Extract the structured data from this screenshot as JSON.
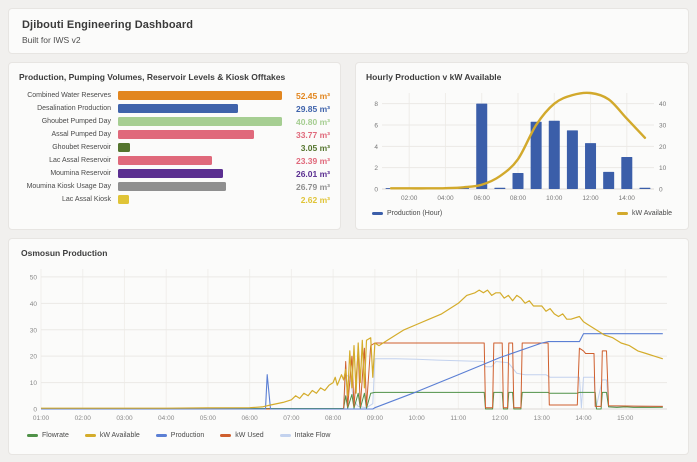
{
  "header": {
    "title": "Djibouti Engineering Dashboard",
    "subtitle": "Built for IWS v2"
  },
  "chart_data": [
    {
      "id": "volumes",
      "type": "bar",
      "orientation": "horizontal",
      "title": "Production, Pumping Volumes, Reservoir Levels & Kiosk Offtakes",
      "unit": "m³",
      "categories": [
        "Combined Water Reserves",
        "Desalination Production",
        "Ghoubet Pumped Day",
        "Assal Pumped Day",
        "Ghoubet Reservoir",
        "Lac Assal Reservoir",
        "Moumina Reservoir",
        "Moumina Kiosk Usage Day",
        "Lac Assal Kiosk"
      ],
      "values": [
        52.45,
        29.85,
        40.8,
        33.77,
        3.05,
        23.39,
        26.01,
        26.79,
        2.62
      ],
      "value_labels": [
        "52.45 m³",
        "29.85 m³",
        "40.80 m³",
        "33.77 m³",
        "3.05 m³",
        "23.39 m³",
        "26.01 m³",
        "26.79 m³",
        "2.62 m³"
      ],
      "bar_colors": [
        "#e2861f",
        "#3f63ab",
        "#a6ce92",
        "#e0697b",
        "#55752e",
        "#e0697b",
        "#5b2f91",
        "#8f8f8f",
        "#e0c437"
      ],
      "xmax_display": 40.8
    },
    {
      "id": "hourly",
      "type": "bar+line",
      "title": "Hourly Production v kW Available",
      "hours": [
        1,
        2,
        3,
        4,
        5,
        6,
        7,
        8,
        9,
        10,
        11,
        12,
        13,
        14,
        15
      ],
      "x_tick_hours": [
        2,
        4,
        6,
        8,
        10,
        12,
        14
      ],
      "x_tick_labels": [
        "02:00",
        "04:00",
        "06:00",
        "08:00",
        "10:00",
        "12:00",
        "14:00"
      ],
      "left_axis": {
        "ticks": [
          0,
          2,
          4,
          6,
          8
        ],
        "max": 9
      },
      "right_axis": {
        "ticks": [
          0,
          10,
          20,
          30,
          40
        ],
        "max": 45
      },
      "series": [
        {
          "name": "Production (Hour)",
          "type": "bar",
          "axis": "left",
          "color": "#3b5ea9",
          "values": [
            0.08,
            0.08,
            0.08,
            0.08,
            0.08,
            8,
            0.12,
            1.5,
            6.3,
            6.4,
            5.5,
            4.3,
            1.6,
            3.0,
            0.12
          ]
        },
        {
          "name": "kW Available",
          "type": "line",
          "axis": "right",
          "color": "#d2a92c",
          "values": [
            0.3,
            0.3,
            0.3,
            0.4,
            0.8,
            2,
            6,
            14,
            30,
            40,
            44,
            45,
            42,
            33,
            24
          ]
        }
      ]
    },
    {
      "id": "osmosun",
      "type": "line",
      "title": "Osmosun Production",
      "ylim": [
        0,
        50
      ],
      "y_ticks": [
        0,
        10,
        20,
        30,
        40,
        50
      ],
      "x_tick_hours": [
        1,
        2,
        3,
        4,
        5,
        6,
        7,
        8,
        9,
        10,
        11,
        12,
        13,
        14,
        15
      ],
      "x_tick_labels": [
        "01:00",
        "02:00",
        "03:00",
        "04:00",
        "05:00",
        "06:00",
        "07:00",
        "08:00",
        "09:00",
        "10:00",
        "11:00",
        "12:00",
        "13:00",
        "14:00",
        "15:00"
      ],
      "series": [
        {
          "name": "Intake Flow",
          "color": "#c3d2ee",
          "width": 1,
          "points": [
            [
              1,
              0
            ],
            [
              8.25,
              0
            ],
            [
              8.3,
              13
            ],
            [
              8.4,
              12
            ],
            [
              8.5,
              3
            ],
            [
              8.6,
              1
            ],
            [
              8.8,
              0.5
            ],
            [
              8.95,
              2
            ],
            [
              9.0,
              19
            ],
            [
              9.5,
              19
            ],
            [
              10,
              18.8
            ],
            [
              10.5,
              18.5
            ],
            [
              11,
              18.3
            ],
            [
              11.6,
              18
            ],
            [
              11.65,
              16
            ],
            [
              11.8,
              16
            ],
            [
              11.9,
              18
            ],
            [
              12.2,
              17.5
            ],
            [
              12.4,
              13.5
            ],
            [
              12.6,
              13
            ],
            [
              13.1,
              13
            ],
            [
              13.2,
              12
            ],
            [
              13.9,
              12
            ],
            [
              13.95,
              0.5
            ],
            [
              14.0,
              12
            ],
            [
              14.25,
              12
            ],
            [
              14.3,
              0.5
            ],
            [
              14.45,
              11
            ],
            [
              14.55,
              11
            ],
            [
              14.6,
              1
            ],
            [
              15.9,
              1
            ]
          ]
        },
        {
          "name": "Flowrate",
          "color": "#4f9147",
          "width": 1,
          "points": [
            [
              1,
              0.2
            ],
            [
              8.25,
              0.2
            ],
            [
              8.3,
              5
            ],
            [
              8.35,
              0.3
            ],
            [
              8.45,
              5.5
            ],
            [
              8.5,
              0.3
            ],
            [
              8.6,
              6
            ],
            [
              8.65,
              0.3
            ],
            [
              8.75,
              6
            ],
            [
              8.8,
              0.3
            ],
            [
              8.9,
              6
            ],
            [
              9.0,
              6.3
            ],
            [
              11.62,
              6.3
            ],
            [
              11.65,
              0
            ],
            [
              11.82,
              0
            ],
            [
              11.85,
              6.3
            ],
            [
              12.05,
              6.3
            ],
            [
              12.08,
              0
            ],
            [
              12.18,
              0
            ],
            [
              12.21,
              6.3
            ],
            [
              12.3,
              6.3
            ],
            [
              12.33,
              0
            ],
            [
              12.5,
              0
            ],
            [
              12.53,
              6.3
            ],
            [
              13.15,
              6.3
            ],
            [
              13.18,
              6
            ],
            [
              13.85,
              6
            ],
            [
              13.9,
              6.3
            ],
            [
              14.28,
              6.3
            ],
            [
              14.31,
              0
            ],
            [
              14.42,
              0
            ],
            [
              14.45,
              6.3
            ],
            [
              14.55,
              6.3
            ],
            [
              14.6,
              0.8
            ],
            [
              14.8,
              0.6
            ],
            [
              15,
              0.8
            ],
            [
              15.2,
              0.6
            ],
            [
              15.4,
              0.7
            ],
            [
              15.6,
              0.6
            ],
            [
              15.9,
              0.7
            ]
          ]
        },
        {
          "name": "kW Used",
          "color": "#cf5f2e",
          "width": 1,
          "points": [
            [
              1,
              0
            ],
            [
              8.25,
              0
            ],
            [
              8.3,
              18
            ],
            [
              8.35,
              1
            ],
            [
              8.45,
              20
            ],
            [
              8.5,
              1
            ],
            [
              8.6,
              22
            ],
            [
              8.65,
              1
            ],
            [
              8.75,
              23
            ],
            [
              8.8,
              1
            ],
            [
              8.9,
              24
            ],
            [
              9.0,
              25
            ],
            [
              11.62,
              25
            ],
            [
              11.65,
              0.5
            ],
            [
              11.82,
              0.5
            ],
            [
              11.85,
              25
            ],
            [
              12.05,
              25
            ],
            [
              12.08,
              0.5
            ],
            [
              12.18,
              0.5
            ],
            [
              12.21,
              25
            ],
            [
              12.3,
              25
            ],
            [
              12.33,
              0.5
            ],
            [
              12.5,
              0.5
            ],
            [
              12.53,
              25
            ],
            [
              13.15,
              25
            ],
            [
              13.18,
              1.5
            ],
            [
              13.85,
              1.5
            ],
            [
              13.9,
              23
            ],
            [
              14.0,
              22
            ],
            [
              14.05,
              21
            ],
            [
              14.25,
              21
            ],
            [
              14.28,
              1
            ],
            [
              14.42,
              1
            ],
            [
              14.45,
              22
            ],
            [
              14.55,
              22
            ],
            [
              14.6,
              1.2
            ],
            [
              15.9,
              1
            ]
          ]
        },
        {
          "name": "Production",
          "color": "#5b7fd4",
          "width": 1.1,
          "points": [
            [
              1,
              0
            ],
            [
              6.38,
              0
            ],
            [
              6.42,
              13
            ],
            [
              6.5,
              0
            ],
            [
              8.95,
              0
            ],
            [
              9.0,
              0.5
            ],
            [
              10,
              6.5
            ],
            [
              11,
              13
            ],
            [
              12,
              19.5
            ],
            [
              13,
              25
            ],
            [
              13.15,
              25.5
            ],
            [
              13.9,
              25.5
            ],
            [
              14.0,
              28.5
            ],
            [
              15.9,
              28.5
            ]
          ]
        },
        {
          "name": "kW Available",
          "color": "#d4ac2b",
          "width": 1.2,
          "points": [
            [
              1,
              0.3
            ],
            [
              2,
              0.3
            ],
            [
              3,
              0.3
            ],
            [
              4,
              0.3
            ],
            [
              5,
              0.4
            ],
            [
              6,
              0.5
            ],
            [
              6.3,
              0.8
            ],
            [
              6.5,
              1.5
            ],
            [
              6.8,
              2.5
            ],
            [
              7,
              3.5
            ],
            [
              7.1,
              5
            ],
            [
              7.2,
              4
            ],
            [
              7.3,
              6
            ],
            [
              7.4,
              5
            ],
            [
              7.5,
              7
            ],
            [
              7.6,
              6
            ],
            [
              7.7,
              8
            ],
            [
              7.8,
              7
            ],
            [
              7.9,
              9
            ],
            [
              8,
              10
            ],
            [
              8.05,
              12
            ],
            [
              8.1,
              9
            ],
            [
              8.2,
              13
            ],
            [
              8.25,
              11
            ],
            [
              8.3,
              15
            ],
            [
              8.35,
              5
            ],
            [
              8.4,
              22
            ],
            [
              8.45,
              8
            ],
            [
              8.5,
              24
            ],
            [
              8.55,
              6
            ],
            [
              8.6,
              25
            ],
            [
              8.65,
              10
            ],
            [
              8.7,
              26
            ],
            [
              8.75,
              8
            ],
            [
              8.8,
              26
            ],
            [
              8.9,
              27
            ],
            [
              8.95,
              12
            ],
            [
              9,
              25
            ],
            [
              9.1,
              24
            ],
            [
              9.3,
              26
            ],
            [
              9.5,
              28
            ],
            [
              9.7,
              30
            ],
            [
              10,
              32
            ],
            [
              10.3,
              34
            ],
            [
              10.6,
              36
            ],
            [
              11,
              40
            ],
            [
              11.2,
              43
            ],
            [
              11.4,
              44
            ],
            [
              11.5,
              45
            ],
            [
              11.6,
              44
            ],
            [
              11.7,
              45
            ],
            [
              11.8,
              43
            ],
            [
              11.9,
              44
            ],
            [
              12,
              44
            ],
            [
              12.1,
              42
            ],
            [
              12.2,
              43
            ],
            [
              12.3,
              41
            ],
            [
              12.4,
              43
            ],
            [
              12.5,
              42
            ],
            [
              12.6,
              40
            ],
            [
              12.7,
              41
            ],
            [
              12.8,
              39
            ],
            [
              13,
              39
            ],
            [
              13.1,
              37
            ],
            [
              13.2,
              38
            ],
            [
              13.3,
              36
            ],
            [
              13.4,
              35
            ],
            [
              13.5,
              36
            ],
            [
              13.6,
              34
            ],
            [
              13.7,
              34
            ],
            [
              13.9,
              35
            ],
            [
              14,
              33
            ],
            [
              14.1,
              32
            ],
            [
              14.3,
              30
            ],
            [
              14.5,
              28
            ],
            [
              14.7,
              27
            ],
            [
              14.9,
              25
            ],
            [
              15.1,
              24
            ],
            [
              15.3,
              22
            ],
            [
              15.5,
              21
            ],
            [
              15.7,
              20
            ],
            [
              15.9,
              19
            ]
          ]
        }
      ],
      "legend_order": [
        "Flowrate",
        "kW Available",
        "Production",
        "kW Used",
        "Intake Flow"
      ]
    }
  ]
}
